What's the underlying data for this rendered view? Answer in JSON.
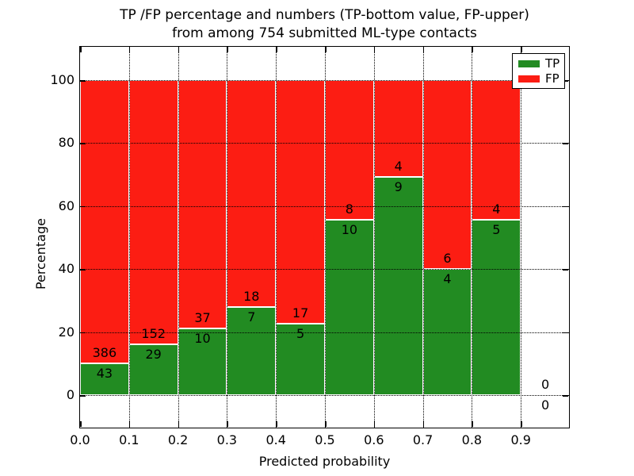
{
  "chart_data": {
    "type": "bar",
    "stacked": true,
    "title_line1": "TP /FP percentage and numbers (TP-bottom value, FP-upper)",
    "title_line2": "from among 754 submitted ML-type contacts",
    "title": "TP /FP percentage and numbers (TP-bottom value, FP-upper)\nfrom among 754 submitted ML-type contacts",
    "xlabel": "Predicted probability",
    "ylabel": "Percentage",
    "total_submitted_contacts": 754,
    "bin_width": 0.1,
    "bin_starts": [
      0.0,
      0.1,
      0.2,
      0.3,
      0.4,
      0.5,
      0.6,
      0.7,
      0.8,
      0.9
    ],
    "series": [
      {
        "name": "TP",
        "color": "#228b22",
        "counts": [
          43,
          29,
          10,
          7,
          5,
          10,
          9,
          4,
          5,
          0
        ]
      },
      {
        "name": "FP",
        "color": "#fc1d13",
        "counts": [
          386,
          152,
          37,
          18,
          17,
          8,
          4,
          6,
          4,
          0
        ]
      }
    ],
    "tp_percent_heights": [
      10.0,
      16.0,
      21.3,
      28.0,
      22.7,
      55.6,
      69.2,
      40.0,
      55.6,
      0.0
    ],
    "bars_total_height_percent": 100,
    "x_tick_labels": [
      "0.0",
      "0.1",
      "0.2",
      "0.3",
      "0.4",
      "0.5",
      "0.6",
      "0.7",
      "0.8",
      "0.9"
    ],
    "y_tick_values": [
      0,
      20,
      40,
      60,
      80,
      100
    ],
    "xlim": [
      0.0,
      1.0
    ],
    "ylim": [
      -11,
      110
    ],
    "grid": true,
    "grid_style": "dotted",
    "legend_position": "upper right",
    "legend_entries": [
      "TP",
      "FP"
    ]
  }
}
